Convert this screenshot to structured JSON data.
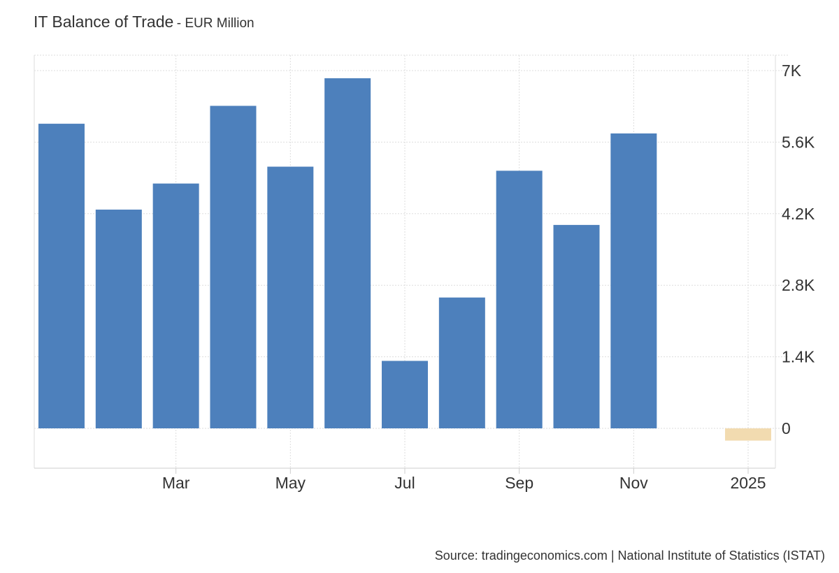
{
  "title": "IT Balance of Trade",
  "subtitle": "- EUR Million",
  "source": "Source: tradingeconomics.com | National Institute of Statistics (ISTAT)",
  "chart_data": {
    "type": "bar",
    "categories": [
      "Jan 2024",
      "Feb 2024",
      "Mar 2024",
      "Apr 2024",
      "May 2024",
      "Jun 2024",
      "Jul 2024",
      "Aug 2024",
      "Sep 2024",
      "Oct 2024",
      "Nov 2024",
      "Dec 2024",
      "Jan 2025"
    ],
    "values": [
      5960,
      4280,
      4790,
      6310,
      5120,
      6850,
      1320,
      2560,
      5040,
      3980,
      5770,
      null,
      -240
    ],
    "bar_colors": {
      "positive": "#4d80bc",
      "latest": "#f2dbb0"
    },
    "x_tick_labels": [
      {
        "category": "Mar 2024",
        "label": "Mar"
      },
      {
        "category": "May 2024",
        "label": "May"
      },
      {
        "category": "Jul 2024",
        "label": "Jul"
      },
      {
        "category": "Sep 2024",
        "label": "Sep"
      },
      {
        "category": "Nov 2024",
        "label": "Nov"
      },
      {
        "category": "Jan 2025",
        "label": "2025"
      }
    ],
    "y_ticks": [
      {
        "value": 0,
        "label": "0"
      },
      {
        "value": 1400,
        "label": "1.4K"
      },
      {
        "value": 2800,
        "label": "2.8K"
      },
      {
        "value": 4200,
        "label": "4.2K"
      },
      {
        "value": 5600,
        "label": "5.6K"
      },
      {
        "value": 7000,
        "label": "7K"
      }
    ],
    "ylim": [
      -750,
      7300
    ],
    "grid": true,
    "y_axis_position": "right"
  }
}
